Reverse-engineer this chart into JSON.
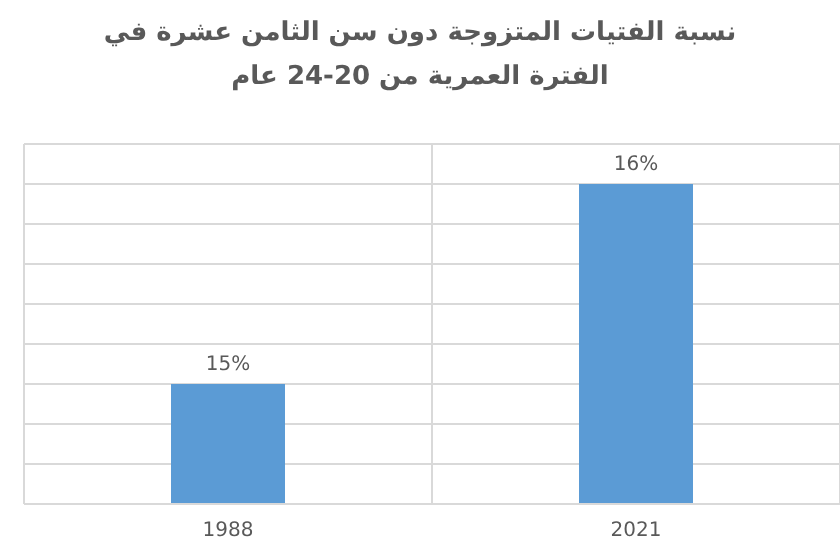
{
  "chart_data": {
    "type": "bar",
    "title": "نسبة الفتيات المتزوجة دون سن الثامن عشرة في الفترة العمرية من 20-24 عام",
    "categories": [
      "1988",
      "2021"
    ],
    "values": [
      15,
      16
    ],
    "color": "#5b9bd5",
    "data_labels": true,
    "value_labels": [
      "15%",
      "16%"
    ],
    "ylim": [
      14.4,
      16.2
    ],
    "yticks": [
      {
        "value": 14.4,
        "label": null
      },
      {
        "value": 14.6,
        "label": null
      },
      {
        "value": 14.8,
        "label": null
      },
      {
        "value": 15.0,
        "label": null
      },
      {
        "value": 15.2,
        "label": null
      },
      {
        "value": 15.4,
        "label": null
      },
      {
        "value": 15.6,
        "label": null
      },
      {
        "value": 15.8,
        "label": null
      },
      {
        "value": 16.0,
        "label": null
      },
      {
        "value": 16.2,
        "label": null
      }
    ],
    "grid": true,
    "tick_labels": "x"
  }
}
